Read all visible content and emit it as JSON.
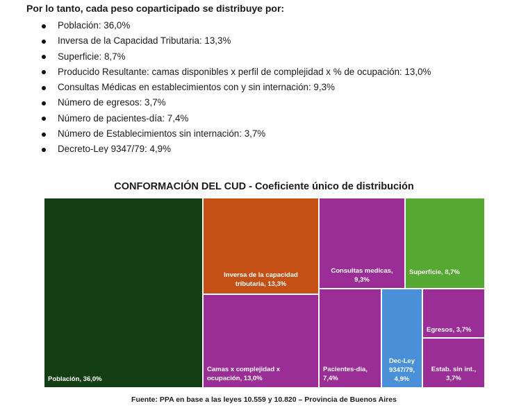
{
  "heading": "Por lo tanto, cada peso coparticipado se distribuye por:",
  "bullets": [
    "Población: 36,0%",
    "Inversa de la Capacidad Tributaria: 13,3%",
    "Superficie: 8,7%",
    "Producido Resultante: camas disponibles x perfil de complejidad x % de ocupación: 13,0%",
    "Consultas Médicas en establecimientos con y sin internación: 9,3%",
    "Número de egresos: 3,7%",
    "Número de pacientes-día: 7,4%",
    "Número de Establecimientos sin internación: 3,7%",
    "Decreto-Ley 9347/79: 4,9%"
  ],
  "chart_data": {
    "type": "treemap",
    "title": "CONFORMACIÓN DEL CUD - Coeficiente único de distribución",
    "items": [
      {
        "label": "Población, 36,0%",
        "value": 36.0,
        "color": "#143f14"
      },
      {
        "label": "Inversa de la capacidad tributaria, 13,3%",
        "value": 13.3,
        "color": "#c55016"
      },
      {
        "label": "Camas x complejidad x ocupación, 13,0%",
        "value": 13.0,
        "color": "#9b2d96"
      },
      {
        "label": "Consultas medicas, 9,3%",
        "value": 9.3,
        "color": "#9b2d96"
      },
      {
        "label": "Superficie, 8,7%",
        "value": 8.7,
        "color": "#55a831"
      },
      {
        "label": "Pacientes-dia, 7,4%",
        "value": 7.4,
        "color": "#9b2d96"
      },
      {
        "label": "Dec-Ley 9347/79, 4,9%",
        "value": 4.9,
        "color": "#4a90d9"
      },
      {
        "label": "Egresos, 3,7%",
        "value": 3.7,
        "color": "#9b2d96"
      },
      {
        "label": "Estab. sin int., 3,7%",
        "value": 3.7,
        "color": "#9b2d96"
      }
    ]
  },
  "source": "Fuente: PPA en base a las leyes 10.559 y 10.820 – Provincia de Buenos Aires"
}
